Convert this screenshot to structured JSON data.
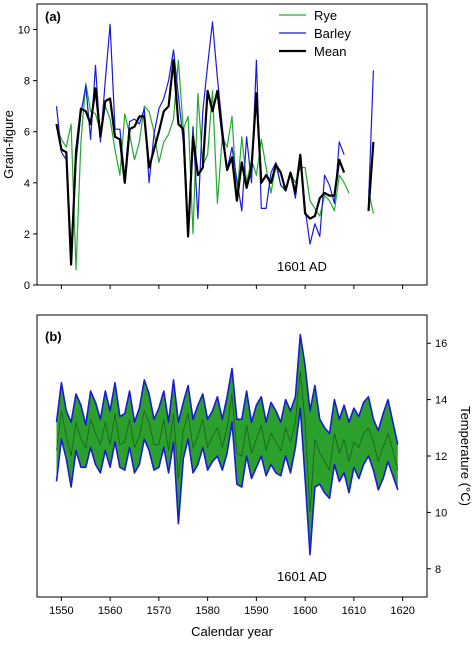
{
  "chart_data": [
    {
      "type": "line",
      "panel_label": "(a)",
      "ylabel": "Grain-figure",
      "xlim": [
        1545,
        1625
      ],
      "ylim": [
        0,
        11
      ],
      "yticks": [
        0,
        2,
        4,
        6,
        8,
        10
      ],
      "annotation": "1601 AD",
      "legend_position": "top-right",
      "x": [
        1549,
        1550,
        1551,
        1552,
        1553,
        1554,
        1555,
        1556,
        1557,
        1558,
        1559,
        1560,
        1561,
        1562,
        1563,
        1564,
        1565,
        1566,
        1567,
        1568,
        1569,
        1570,
        1571,
        1572,
        1573,
        1574,
        1575,
        1576,
        1577,
        1578,
        1579,
        1580,
        1581,
        1582,
        1583,
        1584,
        1585,
        1586,
        1587,
        1588,
        1589,
        1590,
        1591,
        1592,
        1593,
        1594,
        1595,
        1596,
        1597,
        1598,
        1599,
        1600,
        1601,
        1602,
        1603,
        1604,
        1605,
        1606,
        1607,
        1608,
        1609,
        1610,
        1611,
        1612,
        1613,
        1614,
        1615
      ],
      "series": [
        {
          "name": "Rye",
          "color": "#22aa33",
          "values": [
            6.2,
            5.7,
            5.4,
            6.3,
            0.6,
            5.6,
            7.9,
            6.8,
            6.7,
            6.0,
            7.0,
            6.5,
            5.3,
            4.3,
            6.7,
            5.9,
            4.9,
            5.6,
            7.0,
            6.8,
            6.0,
            4.8,
            5.6,
            5.9,
            6.5,
            8.8,
            6.1,
            6.6,
            2.0,
            7.5,
            4.7,
            5.1,
            7.6,
            3.2,
            5.8,
            5.4,
            6.6,
            3.4,
            5.8,
            4.0,
            4.9,
            4.3,
            5.7,
            4.6,
            3.6,
            4.7,
            3.9,
            3.7,
            4.4,
            4.0,
            4.6,
            4.6,
            3.3,
            3.0,
            2.7,
            3.5,
            3.3,
            2.9,
            4.3,
            4.0,
            3.6,
            null,
            null,
            null,
            3.7,
            2.8,
            null
          ]
        },
        {
          "name": "Barley",
          "color": "#1a1ad6",
          "values": [
            7.0,
            5.2,
            4.9,
            1.4,
            4.8,
            6.7,
            7.8,
            5.7,
            8.6,
            5.6,
            8.0,
            10.2,
            6.1,
            6.1,
            4.2,
            6.4,
            6.5,
            6.3,
            6.9,
            4.0,
            5.9,
            6.9,
            7.3,
            8.0,
            9.2,
            7.4,
            5.6,
            1.9,
            6.2,
            2.6,
            6.8,
            8.6,
            10.3,
            8.1,
            6.2,
            4.5,
            5.4,
            4.1,
            2.9,
            5.8,
            4.0,
            8.8,
            3.0,
            3.0,
            4.4,
            4.8,
            3.9,
            3.7,
            4.4,
            3.4,
            5.0,
            3.0,
            1.6,
            2.4,
            1.9,
            4.3,
            3.9,
            3.2,
            5.6,
            5.1,
            null,
            null,
            null,
            null,
            3.2,
            8.4,
            null
          ]
        },
        {
          "name": "Mean",
          "color": "#000000",
          "values": [
            6.3,
            5.3,
            5.2,
            0.8,
            5.2,
            6.9,
            6.8,
            6.3,
            7.7,
            5.8,
            7.2,
            7.3,
            5.8,
            5.7,
            4.0,
            6.1,
            6.2,
            6.6,
            6.6,
            4.6,
            5.3,
            6.0,
            6.8,
            7.0,
            8.8,
            6.3,
            6.1,
            1.9,
            5.8,
            4.3,
            4.6,
            7.6,
            6.8,
            7.6,
            5.9,
            4.5,
            5.0,
            3.3,
            4.8,
            3.8,
            4.6,
            7.5,
            4.0,
            4.3,
            4.0,
            4.7,
            4.4,
            3.7,
            4.4,
            3.6,
            5.1,
            2.8,
            2.6,
            2.7,
            3.4,
            3.6,
            3.5,
            3.5,
            4.9,
            4.4,
            null,
            null,
            null,
            null,
            2.9,
            5.6,
            null
          ]
        }
      ]
    },
    {
      "type": "area",
      "panel_label": "(b)",
      "xlabel": "Calendar year",
      "ylabel": "Temperature (°C)",
      "xlim": [
        1545,
        1625
      ],
      "ylim": [
        7,
        17
      ],
      "xticks": [
        1550,
        1560,
        1570,
        1580,
        1590,
        1600,
        1610,
        1620
      ],
      "yticks": [
        8,
        10,
        12,
        14,
        16
      ],
      "annotation": "1601 AD",
      "band_fill": "#2ca02c",
      "band_edge": "#1a1ad6",
      "x": [
        1549,
        1550,
        1551,
        1552,
        1553,
        1554,
        1555,
        1556,
        1557,
        1558,
        1559,
        1560,
        1561,
        1562,
        1563,
        1564,
        1565,
        1566,
        1567,
        1568,
        1569,
        1570,
        1571,
        1572,
        1573,
        1574,
        1575,
        1576,
        1577,
        1578,
        1579,
        1580,
        1581,
        1582,
        1583,
        1584,
        1585,
        1586,
        1587,
        1588,
        1589,
        1590,
        1591,
        1592,
        1593,
        1594,
        1595,
        1596,
        1597,
        1598,
        1599,
        1600,
        1601,
        1602,
        1603,
        1604,
        1605,
        1606,
        1607,
        1608,
        1609,
        1610,
        1611,
        1612,
        1613,
        1614,
        1615,
        1616,
        1617,
        1618,
        1619
      ],
      "series": [
        {
          "name": "Upper",
          "values": [
            13.2,
            14.6,
            13.6,
            13.2,
            14.2,
            13.8,
            13.1,
            14.3,
            13.9,
            13.3,
            14.3,
            13.6,
            14.6,
            13.4,
            13.5,
            14.3,
            13.2,
            13.7,
            14.7,
            14.2,
            13.3,
            13.7,
            14.3,
            13.2,
            14.7,
            13.2,
            13.9,
            14.5,
            13.3,
            13.8,
            14.2,
            13.3,
            13.6,
            14.1,
            13.3,
            14.1,
            15.1,
            13.3,
            13.3,
            14.3,
            13.2,
            13.8,
            14.1,
            13.2,
            13.9,
            13.6,
            13.2,
            14.0,
            13.6,
            14.1,
            16.3,
            15.2,
            13.6,
            14.5,
            13.3,
            13.0,
            12.8,
            14.0,
            13.3,
            13.8,
            13.2,
            13.7,
            13.4,
            13.9,
            14.1,
            13.3,
            12.9,
            13.5,
            14.0,
            13.2,
            12.4
          ]
        },
        {
          "name": "Mean",
          "values": [
            12.2,
            13.6,
            12.7,
            12.0,
            13.2,
            12.6,
            12.3,
            13.3,
            12.8,
            12.4,
            13.2,
            12.4,
            13.5,
            12.4,
            12.5,
            13.3,
            12.3,
            12.7,
            13.6,
            13.2,
            12.4,
            12.4,
            13.3,
            12.2,
            13.5,
            11.2,
            12.9,
            13.5,
            12.3,
            12.7,
            13.3,
            12.3,
            12.7,
            13.0,
            12.3,
            13.0,
            14.2,
            12.1,
            12.0,
            13.1,
            12.1,
            12.6,
            13.1,
            12.2,
            12.8,
            12.5,
            12.2,
            13.0,
            12.5,
            13.2,
            15.0,
            13.2,
            10.0,
            12.6,
            12.1,
            11.8,
            11.5,
            12.8,
            12.1,
            12.6,
            11.8,
            12.5,
            12.3,
            12.8,
            13.0,
            12.5,
            11.8,
            12.3,
            12.8,
            12.2,
            11.5
          ]
        },
        {
          "name": "Lower",
          "values": [
            11.1,
            12.6,
            11.9,
            10.9,
            12.2,
            11.6,
            11.6,
            12.3,
            11.7,
            11.4,
            12.2,
            11.6,
            12.5,
            11.6,
            11.5,
            12.3,
            11.4,
            11.7,
            12.6,
            12.2,
            11.5,
            11.6,
            12.3,
            11.4,
            12.5,
            9.6,
            11.9,
            12.6,
            11.4,
            11.7,
            12.3,
            11.5,
            11.8,
            12.0,
            11.5,
            12.1,
            13.2,
            11.0,
            10.9,
            12.0,
            11.2,
            11.6,
            12.0,
            11.3,
            11.7,
            11.4,
            11.3,
            12.0,
            11.4,
            12.3,
            13.7,
            11.2,
            8.5,
            10.9,
            11.0,
            10.7,
            10.5,
            11.7,
            11.1,
            11.4,
            10.7,
            11.6,
            11.2,
            11.7,
            12.0,
            11.5,
            10.8,
            11.2,
            11.8,
            11.3,
            10.8
          ]
        }
      ]
    }
  ]
}
